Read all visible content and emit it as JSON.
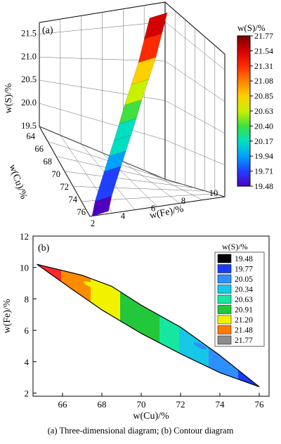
{
  "caption": "(a) Three-dimensional diagram; (b) Contour diagram",
  "chart_data": [
    {
      "panel": "(a)",
      "type": "surface3d",
      "xlabel": "w(Fe)/%",
      "ylabel": "w(Cu)/%",
      "zlabel": "w(S)/%",
      "x_ticks": [
        "2",
        "4",
        "6",
        "8",
        "10"
      ],
      "y_ticks": [
        "64",
        "66",
        "68",
        "70",
        "72",
        "74",
        "76"
      ],
      "z_ticks": [
        "19.5",
        "20.0",
        "20.5",
        "21.0",
        "21.5"
      ],
      "colorbar": {
        "title": "w(S)/%",
        "ticks": [
          "21.77",
          "21.54",
          "21.31",
          "21.08",
          "20.85",
          "20.63",
          "20.40",
          "20.17",
          "19.94",
          "19.71",
          "19.48"
        ],
        "colors": [
          "#7a0000",
          "#d40000",
          "#ff2a00",
          "#ff8000",
          "#ffd000",
          "#c8f000",
          "#40e040",
          "#00e0c0",
          "#00a0ff",
          "#2040ff",
          "#5000c0"
        ]
      },
      "points": [
        {
          "cu": 76.0,
          "fe": 2.3,
          "s": 19.48
        },
        {
          "cu": 75.0,
          "fe": 2.9,
          "s": 19.62
        },
        {
          "cu": 74.0,
          "fe": 3.6,
          "s": 19.75
        },
        {
          "cu": 73.0,
          "fe": 4.3,
          "s": 19.88
        },
        {
          "cu": 72.0,
          "fe": 5.0,
          "s": 20.02
        },
        {
          "cu": 71.0,
          "fe": 5.7,
          "s": 20.17
        },
        {
          "cu": 70.0,
          "fe": 6.4,
          "s": 20.34
        },
        {
          "cu": 69.0,
          "fe": 7.1,
          "s": 20.55
        },
        {
          "cu": 68.0,
          "fe": 7.9,
          "s": 20.8
        },
        {
          "cu": 67.0,
          "fe": 8.7,
          "s": 21.08
        },
        {
          "cu": 66.0,
          "fe": 9.4,
          "s": 21.4
        },
        {
          "cu": 65.2,
          "fe": 10.0,
          "s": 21.7
        }
      ]
    },
    {
      "panel": "(b)",
      "type": "contour",
      "xlabel": "w(Cu)/%",
      "ylabel": "w(Fe)/%",
      "xlim": [
        64.5,
        76.5
      ],
      "ylim": [
        1.8,
        12
      ],
      "x_ticks": [
        66,
        68,
        70,
        72,
        74,
        76
      ],
      "y_ticks": [
        2,
        4,
        6,
        8,
        10,
        12
      ],
      "legend": {
        "title": "w(S)/%",
        "levels": [
          "19.48",
          "19.77",
          "20.05",
          "20.34",
          "20.63",
          "20.91",
          "21.20",
          "21.48",
          "21.77"
        ],
        "colors": [
          "#000000",
          "#1a3cff",
          "#2f8fff",
          "#17c8e6",
          "#17e6a0",
          "#22c83a",
          "#f2f200",
          "#ff7a00",
          "#8c8c8c"
        ]
      },
      "bands": [
        {
          "level": "21.48",
          "color": "#ff2a2a",
          "cu_range": [
            64.7,
            67.0
          ],
          "fe_at_start": 10.2
        },
        {
          "level": "21.20",
          "color": "#ff8c00",
          "cu_range": [
            66.0,
            68.3
          ],
          "fe_at_start": 9.5
        },
        {
          "level": "20.91",
          "color": "#f2f200",
          "cu_range": [
            67.5,
            69.5
          ],
          "fe_at_start": 8.6
        },
        {
          "level": "20.63",
          "color": "#22c83a",
          "cu_range": [
            69.0,
            71.5
          ],
          "fe_at_start": 7.6
        },
        {
          "level": "20.34",
          "color": "#17e6a0",
          "cu_range": [
            71.0,
            72.5
          ],
          "fe_at_start": 6.1
        },
        {
          "level": "20.05",
          "color": "#17c8e6",
          "cu_range": [
            72.0,
            73.8
          ],
          "fe_at_start": 5.3
        },
        {
          "level": "19.77",
          "color": "#2f8fff",
          "cu_range": [
            73.5,
            75.5
          ],
          "fe_at_start": 4.0
        },
        {
          "level": "19.48",
          "color": "#1a3cff",
          "cu_range": [
            75.0,
            76.2
          ],
          "fe_at_start": 2.9
        }
      ],
      "outline": {
        "upper": [
          [
            64.7,
            10.2
          ],
          [
            67.0,
            9.5
          ],
          [
            68.5,
            8.8
          ],
          [
            70.0,
            7.6
          ],
          [
            72.0,
            6.2
          ],
          [
            74.0,
            4.4
          ],
          [
            76.0,
            2.4
          ]
        ],
        "lower": [
          [
            76.0,
            2.4
          ],
          [
            74.0,
            3.3
          ],
          [
            72.0,
            4.5
          ],
          [
            70.0,
            5.8
          ],
          [
            68.0,
            7.3
          ],
          [
            66.5,
            8.6
          ],
          [
            64.7,
            10.2
          ]
        ]
      }
    }
  ]
}
